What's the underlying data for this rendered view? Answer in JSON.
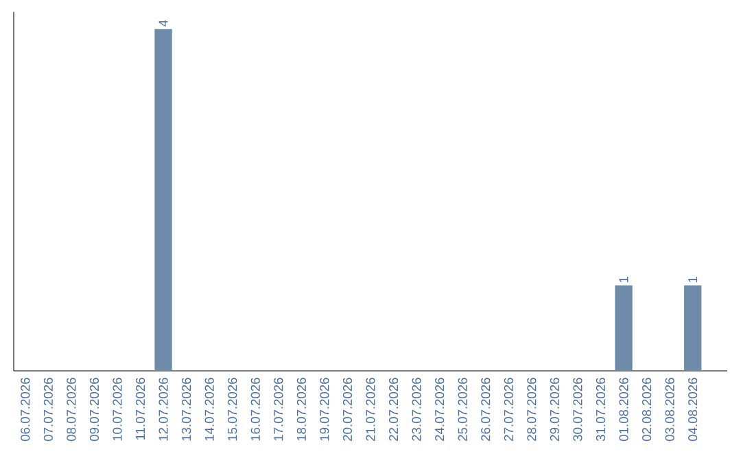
{
  "chart_data": {
    "type": "bar",
    "categories": [
      "06.07.2026",
      "07.07.2026",
      "08.07.2026",
      "09.07.2026",
      "10.07.2026",
      "11.07.2026",
      "12.07.2026",
      "13.07.2026",
      "14.07.2026",
      "15.07.2026",
      "16.07.2026",
      "17.07.2026",
      "18.07.2026",
      "19.07.2026",
      "20.07.2026",
      "21.07.2026",
      "22.07.2026",
      "23.07.2026",
      "24.07.2026",
      "25.07.2026",
      "26.07.2026",
      "27.07.2026",
      "28.07.2026",
      "29.07.2026",
      "30.07.2026",
      "31.07.2026",
      "01.08.2026",
      "02.08.2026",
      "03.08.2026",
      "04.08.2026"
    ],
    "values": [
      0,
      0,
      0,
      0,
      0,
      0,
      4,
      0,
      0,
      0,
      0,
      0,
      0,
      0,
      0,
      0,
      0,
      0,
      0,
      0,
      0,
      0,
      0,
      0,
      0,
      0,
      1,
      0,
      0,
      1
    ],
    "value_labels": [
      null,
      null,
      null,
      null,
      null,
      null,
      "4",
      null,
      null,
      null,
      null,
      null,
      null,
      null,
      null,
      null,
      null,
      null,
      null,
      null,
      null,
      null,
      null,
      null,
      null,
      null,
      "1",
      null,
      null,
      "1"
    ],
    "color": "#6e8caa",
    "tick_labels": "x",
    "grid": false
  }
}
